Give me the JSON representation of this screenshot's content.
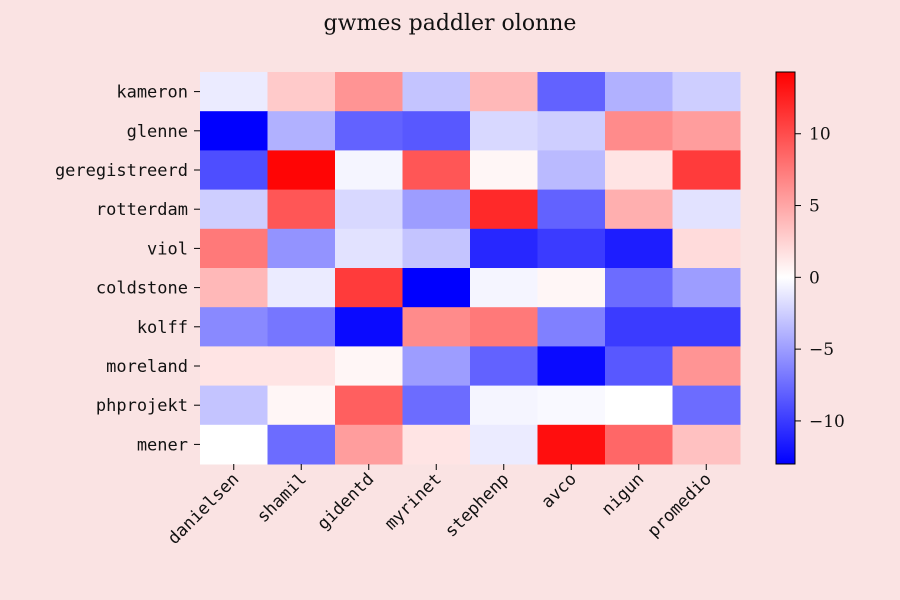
{
  "chart_data": {
    "type": "heatmap",
    "title": "gwmes paddler olonne",
    "x_categories": [
      "danielsen",
      "shamil",
      "gidentd",
      "myrinet",
      "stephenp",
      "avco",
      "nigun",
      "promedio"
    ],
    "y_categories": [
      "kameron",
      "glenne",
      "geregistreerd",
      "rotterdam",
      "viol",
      "coldstone",
      "kolff",
      "moreland",
      "phprojekt",
      "mener"
    ],
    "values": [
      [
        -1,
        3,
        6,
        -3,
        4,
        -8,
        -4,
        -2.5
      ],
      [
        -13,
        -4,
        -8,
        -8.5,
        -2,
        -2.5,
        6.5,
        5.5
      ],
      [
        -9,
        14,
        -0.5,
        9.5,
        0.5,
        -3.5,
        1.5,
        11
      ],
      [
        -2.5,
        9.5,
        -2,
        -5,
        12,
        -8,
        4.5,
        -1.5
      ],
      [
        7.5,
        -5.5,
        -1.5,
        -3,
        -11,
        -10,
        -11.5,
        2
      ],
      [
        4,
        -1,
        11,
        -13,
        -0.5,
        0.5,
        -7.5,
        -5
      ],
      [
        -6,
        -7,
        -12.5,
        6.5,
        7.5,
        -6.5,
        -10,
        -10
      ],
      [
        1.5,
        1.5,
        0.5,
        -5,
        -8,
        -12.5,
        -8.5,
        6
      ],
      [
        -3,
        0.5,
        9,
        -7.5,
        -0.5,
        -0.3,
        0,
        -7.5
      ],
      [
        0,
        -7.5,
        5.5,
        1.5,
        -1,
        13.5,
        8.5,
        3.5
      ]
    ],
    "colormap": [
      "#0000ff",
      "#ffffff",
      "#ff0000"
    ],
    "vmin": -13,
    "vmax": 14.3,
    "colorbar": {
      "ticks": [
        -10,
        -5,
        0,
        5,
        10
      ],
      "tick_labels": [
        "−10",
        "−5",
        "0",
        "5",
        "10"
      ]
    },
    "background_color": "#fae3e3"
  }
}
